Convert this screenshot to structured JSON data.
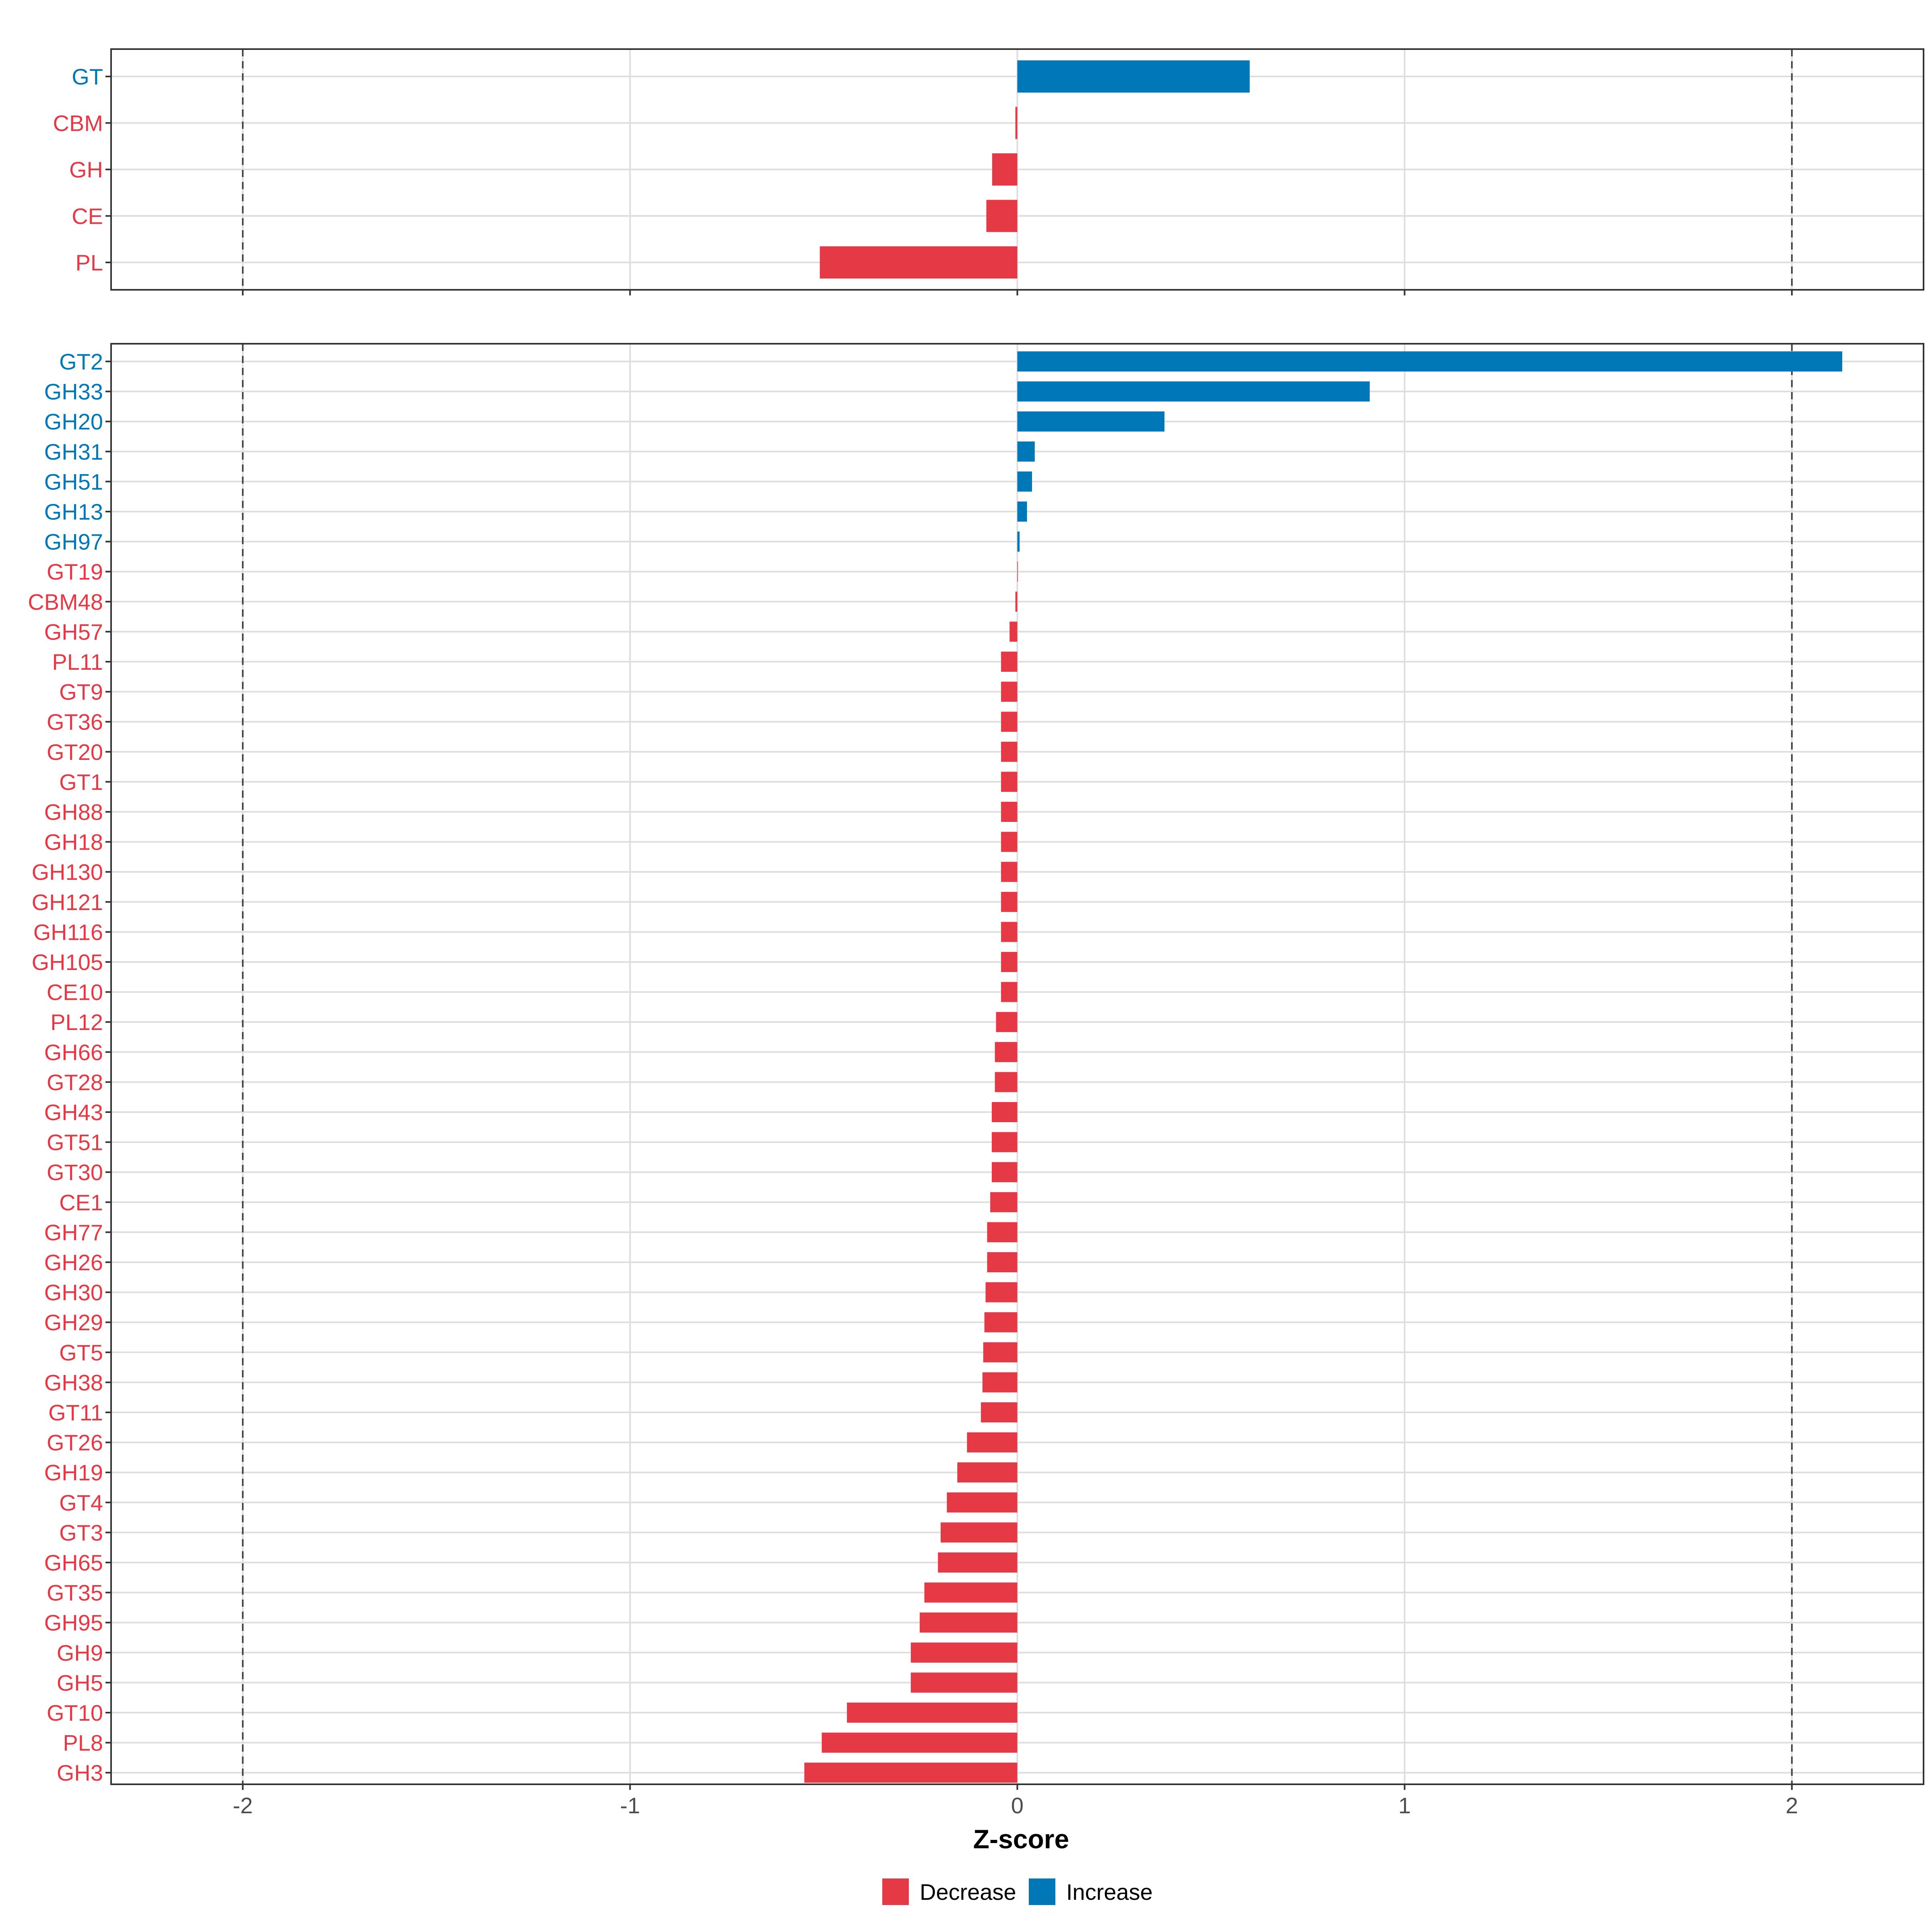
{
  "colors": {
    "decrease": "#E63946",
    "increase": "#0077B6"
  },
  "chart_data": {
    "type": "bar",
    "orientation": "horizontal",
    "xlabel": "Z-score",
    "xlim": [
      -2.34,
      2.34
    ],
    "x_ticks": [
      -2,
      -1,
      0,
      1,
      2
    ],
    "x_tick_labels": [
      "-2",
      "-1",
      "0",
      "1",
      "2"
    ],
    "reference_lines": [
      -2,
      2
    ],
    "legend": {
      "position": "bottom",
      "entries": [
        {
          "label": "Decrease",
          "color_key": "decrease"
        },
        {
          "label": "Increase",
          "color_key": "increase"
        }
      ]
    },
    "panels": [
      {
        "name": "class",
        "categories": [
          "GT",
          "CBM",
          "GH",
          "CE",
          "PL"
        ],
        "values": [
          0.6,
          -0.005,
          -0.065,
          -0.08,
          -0.51
        ],
        "direction": [
          "increase",
          "decrease",
          "decrease",
          "decrease",
          "decrease"
        ]
      },
      {
        "name": "family",
        "categories": [
          "GT2",
          "GH33",
          "GH20",
          "GH31",
          "GH51",
          "GH13",
          "GH97",
          "GT19",
          "CBM48",
          "GH57",
          "PL11",
          "GT9",
          "GT36",
          "GT20",
          "GT1",
          "GH88",
          "GH18",
          "GH130",
          "GH121",
          "GH116",
          "GH105",
          "CE10",
          "PL12",
          "GH66",
          "GT28",
          "GH43",
          "GT51",
          "GT30",
          "CE1",
          "GH77",
          "GH26",
          "GH30",
          "GH29",
          "GT5",
          "GH38",
          "GT11",
          "GT26",
          "GH19",
          "GT4",
          "GT3",
          "GH65",
          "GT35",
          "GH95",
          "GH9",
          "GH5",
          "GT10",
          "PL8",
          "GH3"
        ],
        "values": [
          2.13,
          0.91,
          0.38,
          0.045,
          0.038,
          0.025,
          0.006,
          0.0,
          -0.005,
          -0.02,
          -0.042,
          -0.042,
          -0.042,
          -0.042,
          -0.042,
          -0.042,
          -0.042,
          -0.042,
          -0.042,
          -0.042,
          -0.042,
          -0.042,
          -0.055,
          -0.058,
          -0.058,
          -0.066,
          -0.066,
          -0.066,
          -0.07,
          -0.078,
          -0.078,
          -0.082,
          -0.085,
          -0.088,
          -0.09,
          -0.094,
          -0.13,
          -0.155,
          -0.182,
          -0.198,
          -0.205,
          -0.24,
          -0.252,
          -0.275,
          -0.275,
          -0.44,
          -0.505,
          -0.55
        ],
        "direction": [
          "increase",
          "increase",
          "increase",
          "increase",
          "increase",
          "increase",
          "increase",
          "decrease",
          "decrease",
          "decrease",
          "decrease",
          "decrease",
          "decrease",
          "decrease",
          "decrease",
          "decrease",
          "decrease",
          "decrease",
          "decrease",
          "decrease",
          "decrease",
          "decrease",
          "decrease",
          "decrease",
          "decrease",
          "decrease",
          "decrease",
          "decrease",
          "decrease",
          "decrease",
          "decrease",
          "decrease",
          "decrease",
          "decrease",
          "decrease",
          "decrease",
          "decrease",
          "decrease",
          "decrease",
          "decrease",
          "decrease",
          "decrease",
          "decrease",
          "decrease",
          "decrease",
          "decrease",
          "decrease",
          "decrease"
        ]
      }
    ]
  }
}
